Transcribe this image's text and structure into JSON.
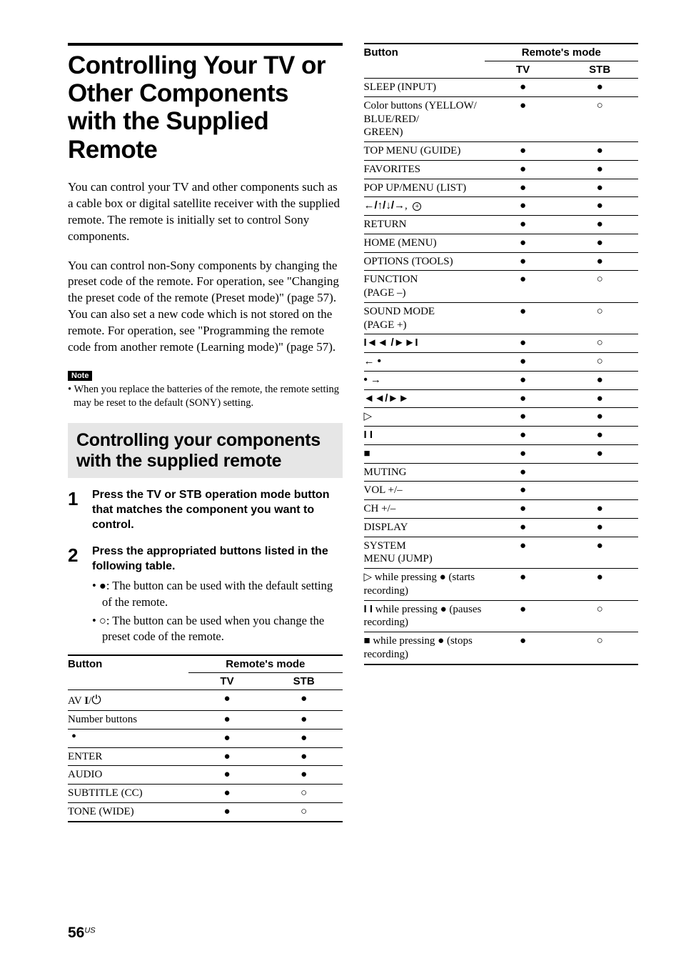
{
  "title": "Controlling Your TV or Other Components with the Supplied Remote",
  "para1": "You can control your TV and other components such as a cable box or digital satellite receiver with the supplied remote. The remote is initially set to control Sony components.",
  "para2": "You can control non-Sony components by changing the preset code of the remote. For operation, see \"Changing the preset code of the remote (Preset mode)\" (page 57).",
  "para3": "You can also set a new code which is not stored on the remote. For operation, see \"Programming the remote code from another remote (Learning mode)\" (page 57).",
  "note_label": "Note",
  "note_text": "• When you replace the batteries of the remote, the remote setting may be reset to the default (SONY) setting.",
  "section_heading": "Controlling your components with the supplied remote",
  "step1_num": "1",
  "step1_head": "Press the TV or STB operation mode button that matches the component you want to control.",
  "step2_num": "2",
  "step2_head": "Press the appropriated buttons listed in the following table.",
  "step2_sub1_pre": "• ",
  "step2_sub1_mid": ": The button can be used with the default setting of the remote.",
  "step2_sub2_pre": "• ",
  "step2_sub2_mid": ": The button can be used when you change the preset code of the remote.",
  "table": {
    "hdr_button": "Button",
    "hdr_mode": "Remote's mode",
    "hdr_tv": "TV",
    "hdr_stb": "STB"
  },
  "rows_left": [
    {
      "label_html": "AV <b>I</b>/<span style='font-size:17px'>⏻</span>",
      "tv": "f",
      "stb": "f"
    },
    {
      "label_html": "Number buttons",
      "tv": "f",
      "stb": "f"
    },
    {
      "label_html": "<span style='font-size:20px;line-height:0.5'>&nbsp;•</span>",
      "tv": "f",
      "stb": "f"
    },
    {
      "label_html": "ENTER",
      "tv": "f",
      "stb": "f"
    },
    {
      "label_html": "AUDIO",
      "tv": "f",
      "stb": "f"
    },
    {
      "label_html": "SUBTITLE (CC)",
      "tv": "f",
      "stb": "o"
    },
    {
      "label_html": "TONE (WIDE)",
      "tv": "f",
      "stb": "o"
    }
  ],
  "rows_right": [
    {
      "label_html": "SLEEP (INPUT)",
      "tv": "f",
      "stb": "f"
    },
    {
      "label_html": "Color buttons (YELLOW/<br>BLUE/RED/<br>GREEN)",
      "tv": "f",
      "stb": "o"
    },
    {
      "label_html": "TOP MENU (GUIDE)",
      "tv": "f",
      "stb": "f"
    },
    {
      "label_html": "FAVORITES",
      "tv": "f",
      "stb": "f"
    },
    {
      "label_html": "POP UP/MENU (LIST)",
      "tv": "f",
      "stb": "f"
    },
    {
      "label_html": "<b class='glyph'>←/↑/↓/→</b>,&nbsp; <span style='display:inline-block;border:1px solid #000;border-radius:50%;width:12px;height:12px;font-size:10px;line-height:12px;text-align:center;vertical-align:middle'>+</span>",
      "tv": "f",
      "stb": "f"
    },
    {
      "label_html": "RETURN",
      "tv": "f",
      "stb": "f"
    },
    {
      "label_html": "HOME (MENU)",
      "tv": "f",
      "stb": "f"
    },
    {
      "label_html": "OPTIONS (TOOLS)",
      "tv": "f",
      "stb": "f"
    },
    {
      "label_html": "FUNCTION<br>(PAGE –)",
      "tv": "f",
      "stb": "o"
    },
    {
      "label_html": "SOUND MODE<br>(PAGE +)",
      "tv": "f",
      "stb": "o"
    },
    {
      "label_html": "<b class='glyph'>I◄◄ /►►I</b>",
      "tv": "f",
      "stb": "o"
    },
    {
      "label_html": "<b class='glyph'>← •</b>",
      "tv": "f",
      "stb": "o"
    },
    {
      "label_html": "<b class='glyph'>• →</b>",
      "tv": "f",
      "stb": "f"
    },
    {
      "label_html": "<b class='glyph'>◄◄/►►</b>",
      "tv": "f",
      "stb": "f"
    },
    {
      "label_html": "<span class='glyph'>▷</span>",
      "tv": "f",
      "stb": "f"
    },
    {
      "label_html": "<b class='glyph'>I I</b>",
      "tv": "f",
      "stb": "f"
    },
    {
      "label_html": "<span class='glyph'>■</span>",
      "tv": "f",
      "stb": "f"
    },
    {
      "label_html": "MUTING",
      "tv": "f",
      "stb": ""
    },
    {
      "label_html": "VOL +/–",
      "tv": "f",
      "stb": ""
    },
    {
      "label_html": "CH +/–",
      "tv": "f",
      "stb": "f"
    },
    {
      "label_html": "DISPLAY",
      "tv": "f",
      "stb": "f"
    },
    {
      "label_html": "SYSTEM<br>MENU (JUMP)",
      "tv": "f",
      "stb": "f"
    },
    {
      "label_html": "<span class='glyph'>▷</span> while pressing ● (starts recording)",
      "tv": "f",
      "stb": "f"
    },
    {
      "label_html": "<b class='glyph'>I I</b> while pressing ● (pauses recording)",
      "tv": "f",
      "stb": "o"
    },
    {
      "label_html": "<span class='glyph'>■</span> while pressing ● (stops recording)",
      "tv": "f",
      "stb": "o"
    }
  ],
  "page_number": "56",
  "page_suffix": "US"
}
